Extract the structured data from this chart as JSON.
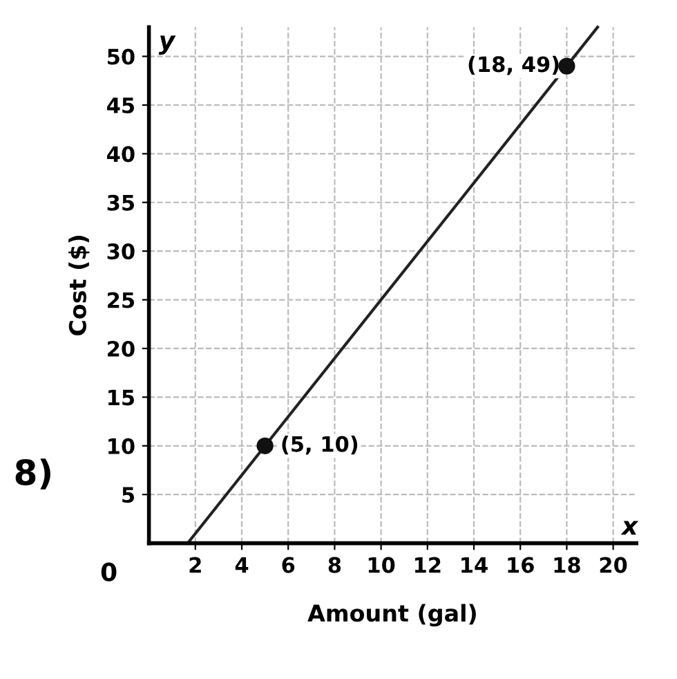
{
  "chart_data": {
    "type": "line",
    "xlabel": "Amount (gal)",
    "ylabel": "Cost ($)",
    "xlim": [
      0,
      21
    ],
    "ylim": [
      0,
      53
    ],
    "xticks": [
      2,
      4,
      6,
      8,
      10,
      12,
      14,
      16,
      18,
      20
    ],
    "yticks": [
      5,
      10,
      15,
      20,
      25,
      30,
      35,
      40,
      45,
      50
    ],
    "grid": true,
    "series": [
      {
        "type": "line",
        "color": "#222222",
        "x": [
          1.67,
          19.33
        ],
        "values": [
          0,
          53
        ],
        "marker": "none"
      },
      {
        "type": "scatter",
        "color": "#111111",
        "x": [
          5,
          18
        ],
        "values": [
          10,
          49
        ],
        "marker": "circle"
      }
    ],
    "annotations": [
      {
        "text": "(5, 10)",
        "x": 5,
        "y": 10
      },
      {
        "text": "(18, 49)",
        "x": 18,
        "y": 49
      },
      "0",
      "x",
      "y",
      "8)"
    ]
  }
}
